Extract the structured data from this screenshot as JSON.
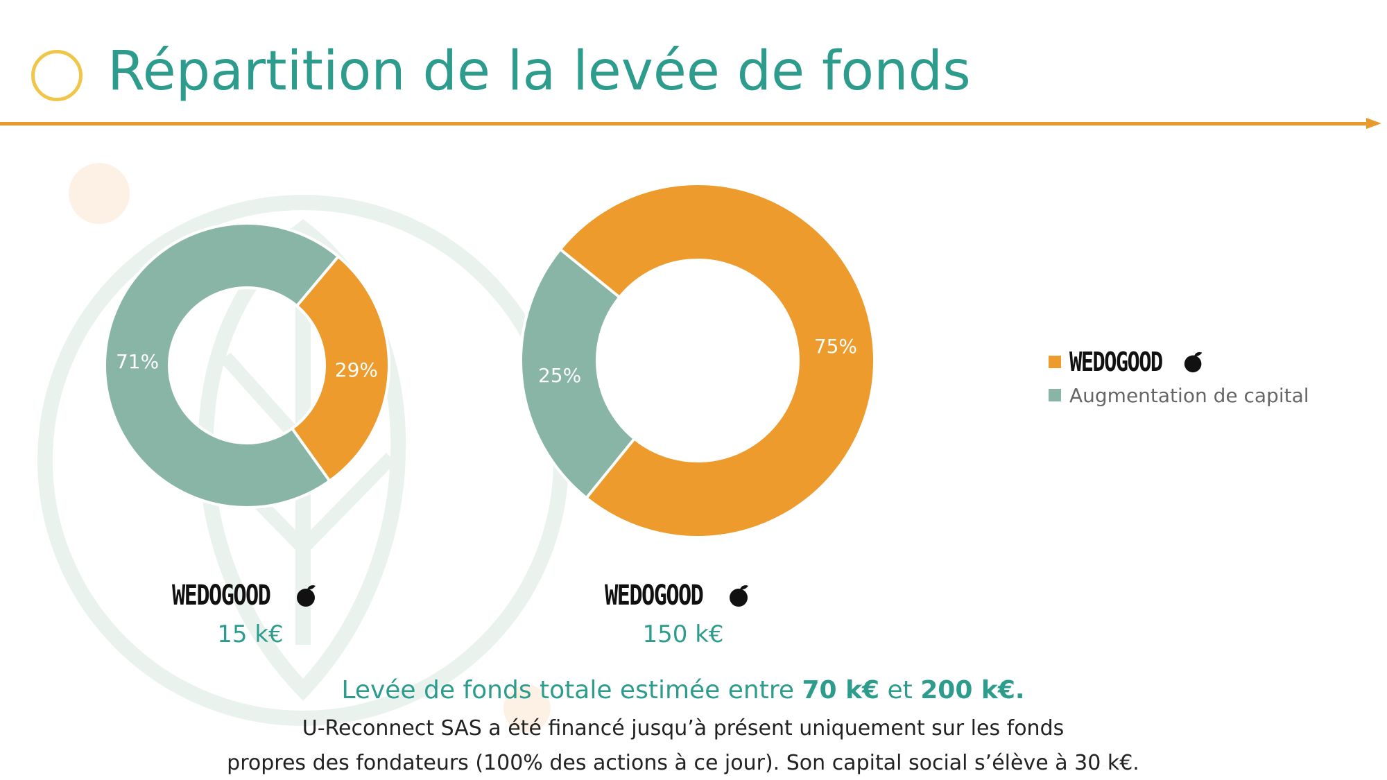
{
  "header": {
    "title": "Répartition de la levée de fonds"
  },
  "colors": {
    "accent": "#e99a2c",
    "title": "#2e9c8c",
    "ring": "#f0c64a",
    "series_wedogood": "#ec9b2c",
    "series_capital": "#88b5a5"
  },
  "chart_data": [
    {
      "type": "pie",
      "variant": "donut",
      "categories": [
        "WEDOGOOD",
        "Augmentation de capital"
      ],
      "values": [
        29,
        71
      ],
      "labels": [
        "29%",
        "71%"
      ],
      "caption_logo": "WEDOGOOD",
      "caption_amount": "15 k€"
    },
    {
      "type": "pie",
      "variant": "donut",
      "categories": [
        "WEDOGOOD",
        "Augmentation de capital"
      ],
      "values": [
        75,
        25
      ],
      "labels": [
        "75%",
        "25%"
      ],
      "caption_logo": "WEDOGOOD",
      "caption_amount": "150 k€"
    }
  ],
  "legend": {
    "placement": "right",
    "items": [
      {
        "label": "WEDOGOOD",
        "color": "#ec9b2c",
        "icon": "apple-icon"
      },
      {
        "label": "Augmentation de capital",
        "color": "#88b5a5"
      }
    ]
  },
  "footer": {
    "summary_prefix": "Levée de fonds totale estimée entre",
    "summary_min": "70 k€",
    "summary_and": "et",
    "summary_max": "200 k€.",
    "note_line1": "U-Reconnect SAS a été financé jusqu’à présent uniquement sur les fonds",
    "note_line2": "propres des fondateurs (100% des actions à ce jour). Son capital social s’élève à 30 k€."
  }
}
